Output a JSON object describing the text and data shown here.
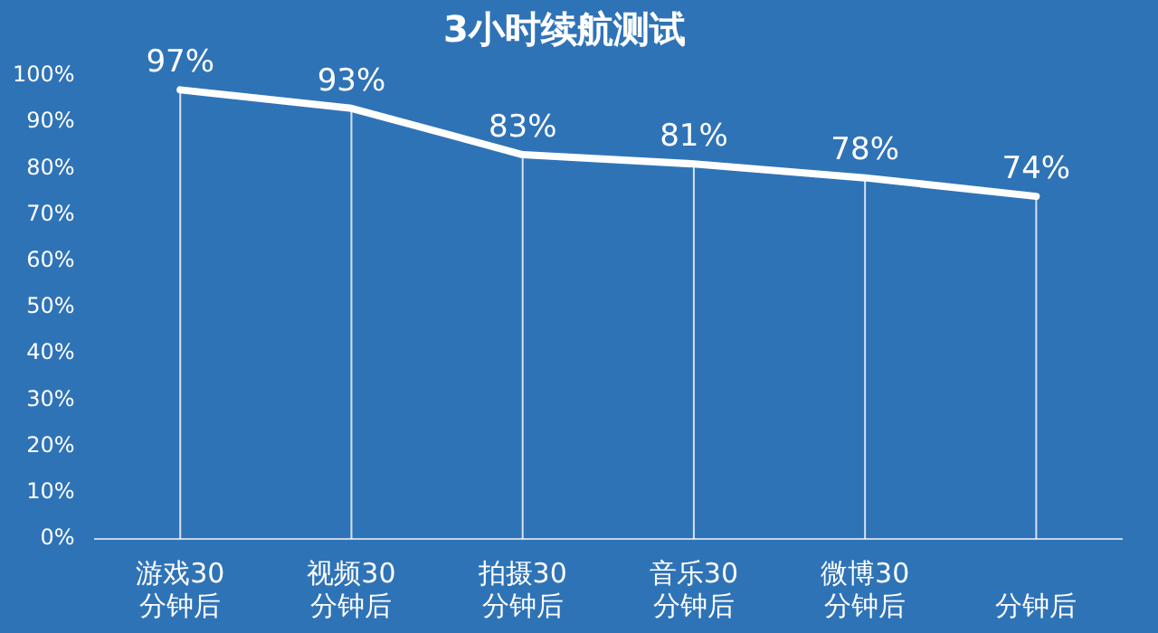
{
  "chart_data": {
    "type": "line",
    "title": "3小时续航测试",
    "categories": [
      "游戏30\n分钟后",
      "视频30\n分钟后",
      "拍摄30\n分钟后",
      "音乐30\n分钟后",
      "微博30\n分钟后",
      "分钟后"
    ],
    "series": [
      {
        "color": "#ffffff",
        "values": [
          97,
          93,
          83,
          81,
          78,
          74
        ],
        "value_labels": [
          "97%",
          "93%",
          "83%",
          "81%",
          "78%",
          "74%"
        ]
      }
    ],
    "ylim": [
      0,
      100
    ],
    "yticks": [
      {
        "value": 0,
        "label": "0%"
      },
      {
        "value": 10,
        "label": "10%"
      },
      {
        "value": 20,
        "label": "20%"
      },
      {
        "value": 30,
        "label": "30%"
      },
      {
        "value": 40,
        "label": "40%"
      },
      {
        "value": 50,
        "label": "50%"
      },
      {
        "value": 60,
        "label": "60%"
      },
      {
        "value": 70,
        "label": "70%"
      },
      {
        "value": 80,
        "label": "80%"
      },
      {
        "value": 90,
        "label": "90%"
      },
      {
        "value": 100,
        "label": "100%"
      }
    ],
    "grid": "x",
    "legend": false,
    "marker": "none",
    "line_style": "solid"
  }
}
